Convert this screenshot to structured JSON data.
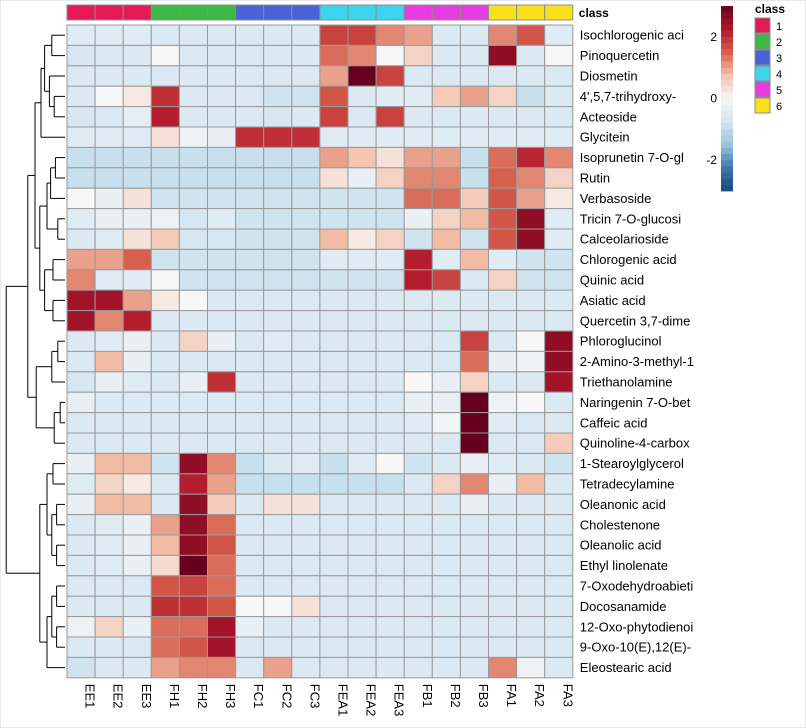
{
  "chart_data": {
    "type": "heatmap",
    "columns": [
      "EE1",
      "EE2",
      "EE3",
      "FH1",
      "FH2",
      "FH3",
      "FC1",
      "FC2",
      "FC3",
      "FEA1",
      "FEA2",
      "FEA3",
      "FB1",
      "FB2",
      "FB3",
      "FA1",
      "FA2",
      "FA3"
    ],
    "column_class": [
      1,
      1,
      1,
      2,
      2,
      2,
      3,
      3,
      3,
      4,
      4,
      4,
      5,
      5,
      5,
      6,
      6,
      6
    ],
    "annotation_title": "class",
    "class_legend": {
      "title": "class",
      "labels": [
        "1",
        "2",
        "3",
        "4",
        "5",
        "6"
      ],
      "colors": [
        "#e31a56",
        "#3db845",
        "#4a62d6",
        "#3dd5ee",
        "#e83ce3",
        "#f8e11b"
      ]
    },
    "color_scale": {
      "ticks": [
        2,
        0,
        -2
      ],
      "tick_labels": [
        "2",
        "0",
        "-2"
      ],
      "min": -3,
      "max": 3,
      "stops": [
        "#174a7c",
        "#3c78ab",
        "#98c4de",
        "#d4e6f1",
        "#f7f7f7",
        "#f4c1aa",
        "#d6604d",
        "#b2182b",
        "#67001f"
      ]
    },
    "rows": [
      "Isochlorogenic aci",
      "Pinoquercetin",
      "Diosmetin",
      "4',5,7-trihydroxy-",
      "Acteoside",
      "Glycitein",
      "Isoprunetin 7-O-gl",
      "Rutin",
      "Verbasoside",
      "Tricin 7-O-glucosi",
      "Calceolarioside",
      "Chlorogenic acid",
      "Quinic acid",
      "Asiatic acid",
      "Quercetin 3,7-dime",
      "Phloroglucinol",
      "2-Amino-3-methyl-1",
      "Triethanolamine",
      "Naringenin 7-O-bet",
      "Caffeic acid",
      "Quinoline-4-carbox",
      "1-Stearoylglycerol",
      "Tetradecylamine",
      "Oleanonic acid",
      "Cholestenone",
      "Oleanolic acid",
      "Ethyl linolenate",
      "7-Oxodehydroabieti",
      "Docosanamide",
      "12-Oxo-phytodienoi",
      "9-Oxo-10(E),12(E)-",
      "Eleostearic acid"
    ],
    "values": [
      [
        -0.5,
        -0.5,
        -0.5,
        -0.6,
        -0.6,
        -0.6,
        -0.6,
        -0.6,
        -0.6,
        1.8,
        1.8,
        1.2,
        1.0,
        -0.6,
        -0.6,
        1.2,
        1.6,
        -0.5
      ],
      [
        -0.7,
        -0.6,
        -0.6,
        0,
        -0.6,
        -0.6,
        -0.6,
        -0.6,
        -0.6,
        1.4,
        1.2,
        0,
        0.5,
        -0.6,
        -0.6,
        2.6,
        -0.6,
        0
      ],
      [
        -0.6,
        -0.6,
        -0.6,
        -0.6,
        -0.6,
        -0.6,
        -0.6,
        -0.6,
        -0.6,
        1.0,
        3.0,
        1.8,
        -0.6,
        -0.6,
        -0.6,
        -0.6,
        -0.6,
        -0.6
      ],
      [
        -0.6,
        0,
        0.2,
        2.0,
        -0.6,
        -0.6,
        -0.6,
        -0.8,
        -0.8,
        1.6,
        -0.6,
        -0.5,
        -0.5,
        0.6,
        1.0,
        0.5,
        -0.9,
        -0.6
      ],
      [
        -0.7,
        -0.6,
        -0.4,
        2.2,
        -0.6,
        -0.6,
        -0.6,
        -0.7,
        -0.6,
        1.8,
        -0.6,
        1.8,
        -0.6,
        -0.6,
        -0.6,
        -0.6,
        -0.6,
        -0.6
      ],
      [
        -0.5,
        -0.5,
        -0.5,
        0.3,
        -0.2,
        -0.3,
        2.0,
        2.0,
        2.0,
        -0.5,
        -0.5,
        -0.5,
        -0.5,
        -0.5,
        -0.5,
        -0.5,
        -0.5,
        -0.5
      ],
      [
        -0.9,
        -0.9,
        -0.9,
        -0.9,
        -0.9,
        -0.9,
        -0.9,
        -0.9,
        -0.9,
        1.0,
        0.7,
        0.3,
        1.0,
        1.0,
        -0.9,
        1.4,
        2.1,
        1.2
      ],
      [
        -0.9,
        -0.9,
        -0.9,
        -0.9,
        -0.9,
        -0.9,
        -0.9,
        -0.9,
        -0.9,
        0.3,
        -0.3,
        0.5,
        1.2,
        1.2,
        -0.9,
        1.5,
        1.2,
        0.5
      ],
      [
        0,
        -0.3,
        0.3,
        -0.8,
        -0.8,
        -0.8,
        -0.8,
        -0.8,
        -0.8,
        -0.8,
        -0.8,
        -0.8,
        1.4,
        1.4,
        0.6,
        1.6,
        1.0,
        0.2
      ],
      [
        -0.5,
        -0.3,
        -0.3,
        -0.2,
        -0.7,
        -0.5,
        -0.8,
        -0.8,
        -0.8,
        -0.8,
        -0.8,
        -0.8,
        -0.3,
        0.5,
        0.8,
        1.6,
        2.6,
        -0.5
      ],
      [
        -0.6,
        -0.5,
        0.3,
        0.6,
        -0.7,
        -0.7,
        -0.8,
        -0.8,
        -0.8,
        0.8,
        0.2,
        0.5,
        -0.8,
        0.8,
        -0.8,
        1.6,
        2.6,
        -0.5
      ],
      [
        1.0,
        1.0,
        1.5,
        -0.8,
        -0.8,
        -0.8,
        -0.8,
        -0.8,
        -0.8,
        -0.5,
        -0.5,
        -0.5,
        2.2,
        -0.5,
        0.8,
        -0.5,
        -0.8,
        -0.8
      ],
      [
        1.2,
        -0.5,
        -0.5,
        0,
        -0.8,
        -0.8,
        -0.8,
        -0.8,
        -0.8,
        -0.8,
        -0.8,
        -0.8,
        2.2,
        1.8,
        -0.6,
        0.5,
        -0.8,
        -0.8
      ],
      [
        2.4,
        2.4,
        1.0,
        0.2,
        0,
        -0.6,
        -0.6,
        -0.6,
        -0.6,
        -0.6,
        -0.6,
        -0.6,
        -0.6,
        -0.6,
        -0.6,
        -0.6,
        -0.6,
        -0.6
      ],
      [
        2.4,
        1.2,
        2.2,
        -0.6,
        -0.6,
        -0.6,
        -0.6,
        -0.6,
        -0.6,
        -0.6,
        -0.6,
        -0.6,
        -0.6,
        -0.6,
        -0.6,
        -0.6,
        -0.6,
        -0.6
      ],
      [
        -0.6,
        -0.5,
        -0.3,
        -0.6,
        0.5,
        -0.3,
        -0.6,
        -0.5,
        -0.6,
        -0.6,
        -0.6,
        -0.6,
        -0.6,
        -0.6,
        1.8,
        -0.6,
        0,
        2.6
      ],
      [
        -0.6,
        0.8,
        -0.3,
        -0.6,
        -0.6,
        -0.6,
        -0.6,
        -0.6,
        -0.6,
        -0.6,
        -0.6,
        -0.6,
        -0.6,
        -0.6,
        1.4,
        -0.3,
        -0.2,
        2.6
      ],
      [
        -0.7,
        -0.3,
        -0.5,
        -0.6,
        -0.3,
        2.0,
        -0.6,
        -0.6,
        -0.6,
        -0.6,
        -0.6,
        -0.6,
        0,
        -0.3,
        0.5,
        -0.6,
        -0.6,
        2.4
      ],
      [
        -0.3,
        -0.6,
        -0.6,
        -0.6,
        -0.6,
        -0.6,
        -0.6,
        -0.6,
        -0.6,
        -0.6,
        -0.6,
        -0.6,
        -0.3,
        -0.3,
        3.2,
        -0.2,
        0,
        -0.6
      ],
      [
        -0.6,
        -0.6,
        -0.6,
        -0.6,
        -0.6,
        -0.6,
        -0.6,
        -0.6,
        -0.6,
        -0.6,
        -0.6,
        -0.6,
        -0.5,
        -0.1,
        3.2,
        -0.5,
        -0.6,
        -0.6
      ],
      [
        -0.6,
        -0.6,
        -0.6,
        -0.6,
        -0.6,
        -0.6,
        -0.6,
        -0.6,
        -0.6,
        -0.6,
        -0.6,
        -0.6,
        -0.6,
        -0.6,
        3.2,
        -0.6,
        -0.6,
        0.6
      ],
      [
        -0.3,
        0.8,
        0.8,
        -0.8,
        2.6,
        1.2,
        -0.9,
        -0.6,
        -0.5,
        -0.9,
        -0.5,
        0,
        -0.8,
        -0.6,
        -0.3,
        -0.5,
        -0.6,
        -0.8
      ],
      [
        -0.5,
        0.5,
        0.2,
        -0.6,
        2.2,
        1.0,
        -0.9,
        -0.9,
        -0.9,
        -0.9,
        -0.9,
        -0.9,
        -0.6,
        0.5,
        1.2,
        -0.3,
        0.8,
        -0.6
      ],
      [
        -0.3,
        0.8,
        0.8,
        -0.6,
        2.6,
        0.6,
        -0.6,
        0.3,
        0.3,
        -0.6,
        -0.6,
        -0.6,
        -0.6,
        -0.6,
        -0.3,
        -0.6,
        -0.6,
        -0.6
      ],
      [
        -0.6,
        -0.5,
        -0.3,
        1.0,
        2.6,
        1.4,
        -0.6,
        -0.6,
        -0.6,
        -0.6,
        -0.6,
        -0.6,
        -0.6,
        -0.6,
        -0.6,
        -0.6,
        -0.6,
        -0.6
      ],
      [
        -0.6,
        -0.5,
        -0.3,
        0.8,
        2.6,
        1.6,
        -0.6,
        -0.6,
        -0.6,
        -0.6,
        -0.6,
        -0.6,
        -0.6,
        -0.6,
        -0.6,
        -0.6,
        -0.6,
        -0.6
      ],
      [
        -0.6,
        -0.5,
        -0.3,
        0.4,
        3.4,
        1.4,
        -0.6,
        -0.6,
        -0.6,
        -0.6,
        -0.6,
        -0.6,
        -0.6,
        -0.6,
        -0.6,
        -0.6,
        -0.6,
        -0.6
      ],
      [
        -0.6,
        -0.6,
        -0.6,
        1.6,
        1.8,
        1.4,
        -0.6,
        -0.6,
        -0.6,
        -0.6,
        -0.6,
        -0.6,
        -0.6,
        -0.6,
        -0.6,
        -0.6,
        -0.6,
        -0.6
      ],
      [
        -0.6,
        -0.6,
        -0.6,
        2.0,
        2.0,
        1.6,
        0,
        0,
        0.3,
        -0.6,
        -0.6,
        -0.6,
        -0.6,
        -0.6,
        -0.6,
        -0.6,
        -0.6,
        -0.6
      ],
      [
        -0.2,
        0.5,
        -0.3,
        1.4,
        1.4,
        2.4,
        -0.3,
        -0.6,
        -0.6,
        -0.6,
        -0.6,
        -0.6,
        -0.6,
        -0.6,
        -0.6,
        -0.6,
        -0.6,
        -0.6
      ],
      [
        -0.6,
        -0.6,
        -0.6,
        1.4,
        1.6,
        2.4,
        -0.6,
        -0.6,
        -0.6,
        -0.6,
        -0.6,
        -0.6,
        -0.6,
        -0.6,
        -0.6,
        -0.6,
        -0.6,
        -0.6
      ],
      [
        -0.8,
        -0.6,
        -0.6,
        1.0,
        1.2,
        1.2,
        -0.6,
        1.0,
        -0.6,
        -0.6,
        -0.6,
        -0.6,
        -0.6,
        -0.6,
        -0.6,
        1.2,
        -0.2,
        -0.6
      ]
    ]
  }
}
